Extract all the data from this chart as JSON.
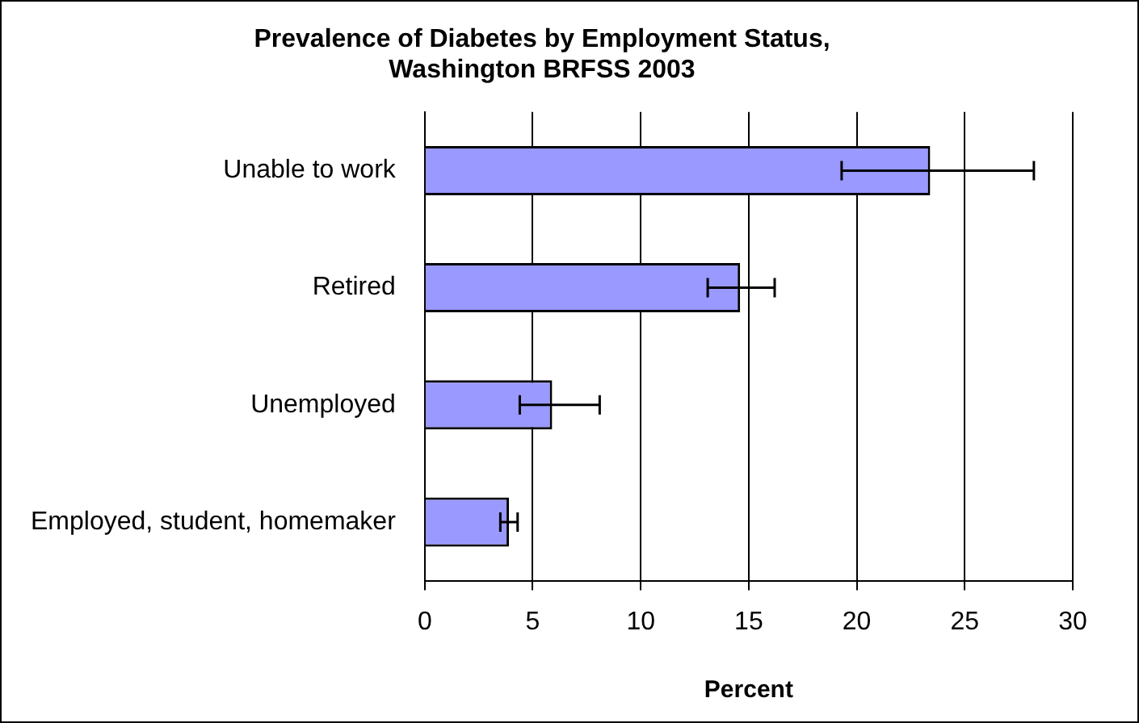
{
  "chart_data": {
    "type": "bar",
    "orientation": "horizontal",
    "title": "Prevalence of Diabetes by Employment Status, Washington BRFSS 2003",
    "xlabel": "Percent",
    "categories": [
      "Unable to work",
      "Retired",
      "Unemployed",
      "Employed, student, homemaker"
    ],
    "values": [
      23.4,
      14.6,
      5.9,
      3.9
    ],
    "errors": [
      [
        19.3,
        28.2
      ],
      [
        13.1,
        16.2
      ],
      [
        4.4,
        8.1
      ],
      [
        3.5,
        4.3
      ]
    ],
    "color": "#9999ff",
    "xlim": [
      0,
      30
    ],
    "xticks": [
      0,
      5,
      10,
      15,
      20,
      25,
      30
    ],
    "grid": "x",
    "legend": false
  }
}
